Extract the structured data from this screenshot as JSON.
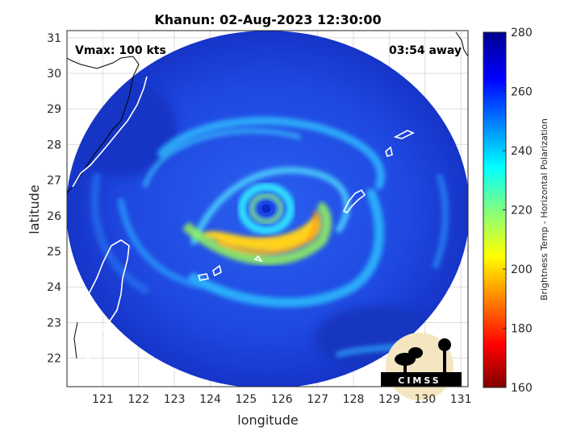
{
  "title": "Khanun: 02-Aug-2023 12:30:00",
  "annotations": {
    "vmax": "Vmax: 100 kts",
    "away": "03:54 away"
  },
  "map": {
    "xlabel": "longitude",
    "ylabel": "latitude",
    "xlim": [
      120,
      131.2
    ],
    "ylim": [
      21.2,
      31.2
    ],
    "xticks": [
      "121",
      "122",
      "123",
      "124",
      "125",
      "126",
      "127",
      "128",
      "129",
      "130",
      "131"
    ],
    "yticks": [
      "22",
      "23",
      "24",
      "25",
      "26",
      "27",
      "28",
      "29",
      "30",
      "31"
    ],
    "grid": true,
    "storm_center": {
      "lon": 125.4,
      "lat": 26.2
    },
    "colors": {
      "background": "#1a3fd8",
      "eye": "#0a28c8",
      "eyewall": "#36e6ff",
      "band": "#ffd21e"
    }
  },
  "colorbar": {
    "label": "Brightness Temp - Horizontal Polarization",
    "range": [
      160,
      280
    ],
    "ticks": [
      "160",
      "180",
      "200",
      "220",
      "240",
      "260",
      "280"
    ],
    "colormap": "jet"
  },
  "logo": {
    "text": "CIMSS"
  }
}
